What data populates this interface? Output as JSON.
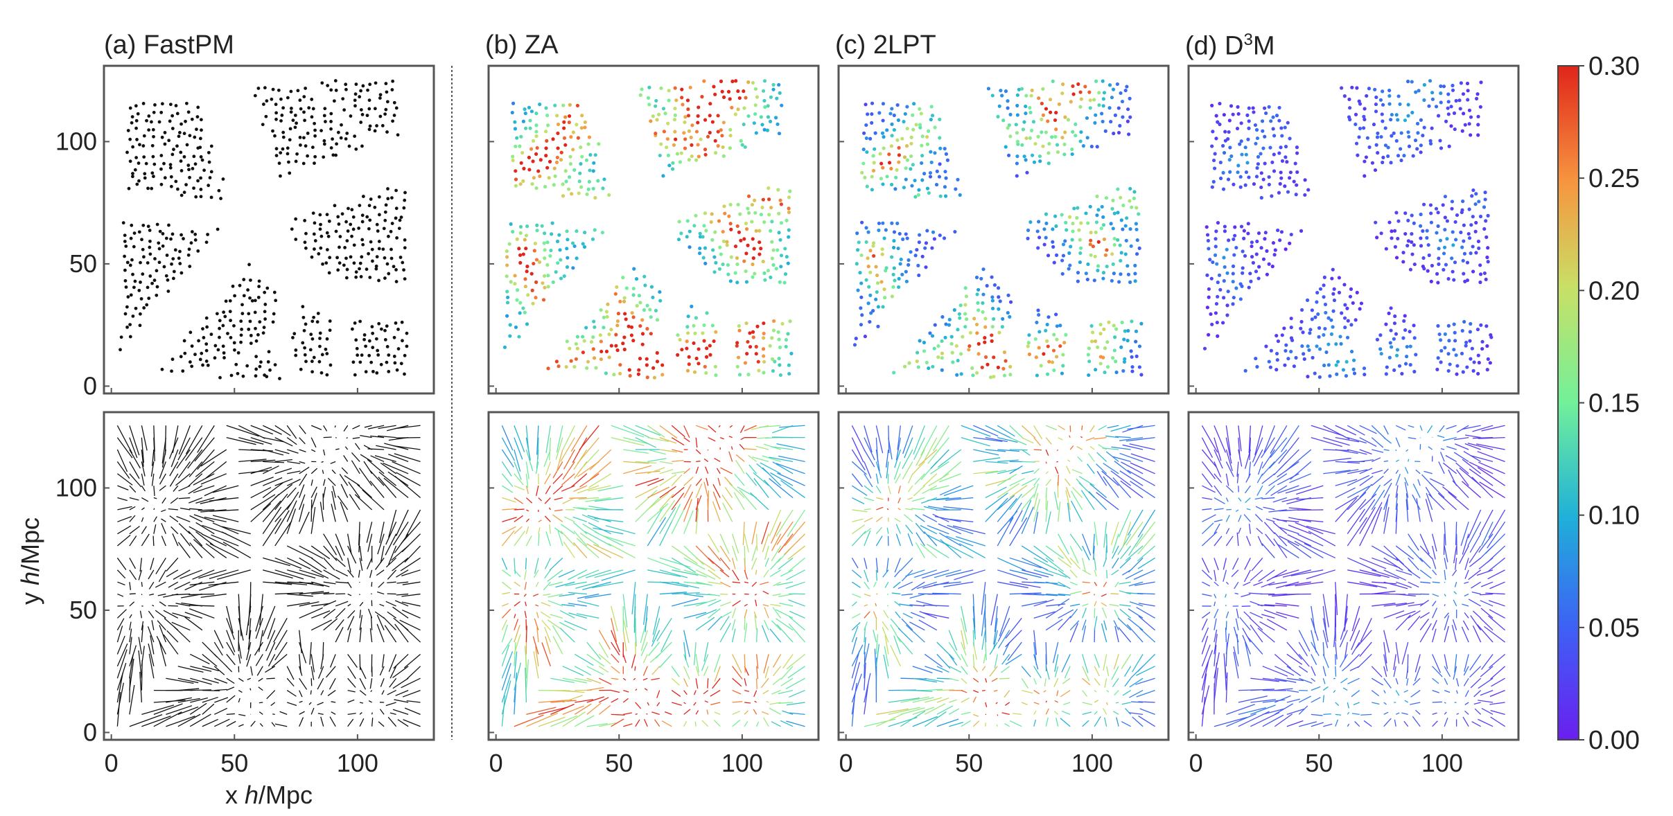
{
  "panels": [
    {
      "title": "(a) FastPM",
      "mode": "black"
    },
    {
      "title": "(b) ZA",
      "mode": "za"
    },
    {
      "title": "(c) 2LPT",
      "mode": "lpt"
    },
    {
      "title": "(d) D",
      "title_sup": "3",
      "title_tail": "M",
      "mode": "d3m"
    }
  ],
  "chart_data": {
    "type": "scatter",
    "description_rows": [
      "particle positions",
      "displacement vectors"
    ],
    "xlabel_prefix": "x ",
    "xlabel_italic": "h",
    "xlabel_suffix": "/Mpc",
    "ylabel_prefix": "y ",
    "ylabel_italic": "h",
    "ylabel_suffix": "/Mpc",
    "xlim": [
      -3,
      131
    ],
    "ylim": [
      -3,
      131
    ],
    "xticks": [
      "0",
      "50",
      "100"
    ],
    "xtick_values": [
      0,
      50,
      100
    ],
    "yticks": [
      "0",
      "50",
      "100"
    ],
    "ytick_values": [
      0,
      50,
      100
    ],
    "colorbar": {
      "vmin": 0.0,
      "vmax": 0.3,
      "colormap": "rainbow",
      "ticks": [
        "0.00",
        "0.05",
        "0.10",
        "0.15",
        "0.20",
        "0.25",
        "0.30"
      ],
      "tick_values": [
        0.0,
        0.05,
        0.1,
        0.15,
        0.2,
        0.25,
        0.3
      ]
    },
    "grid": false
  }
}
